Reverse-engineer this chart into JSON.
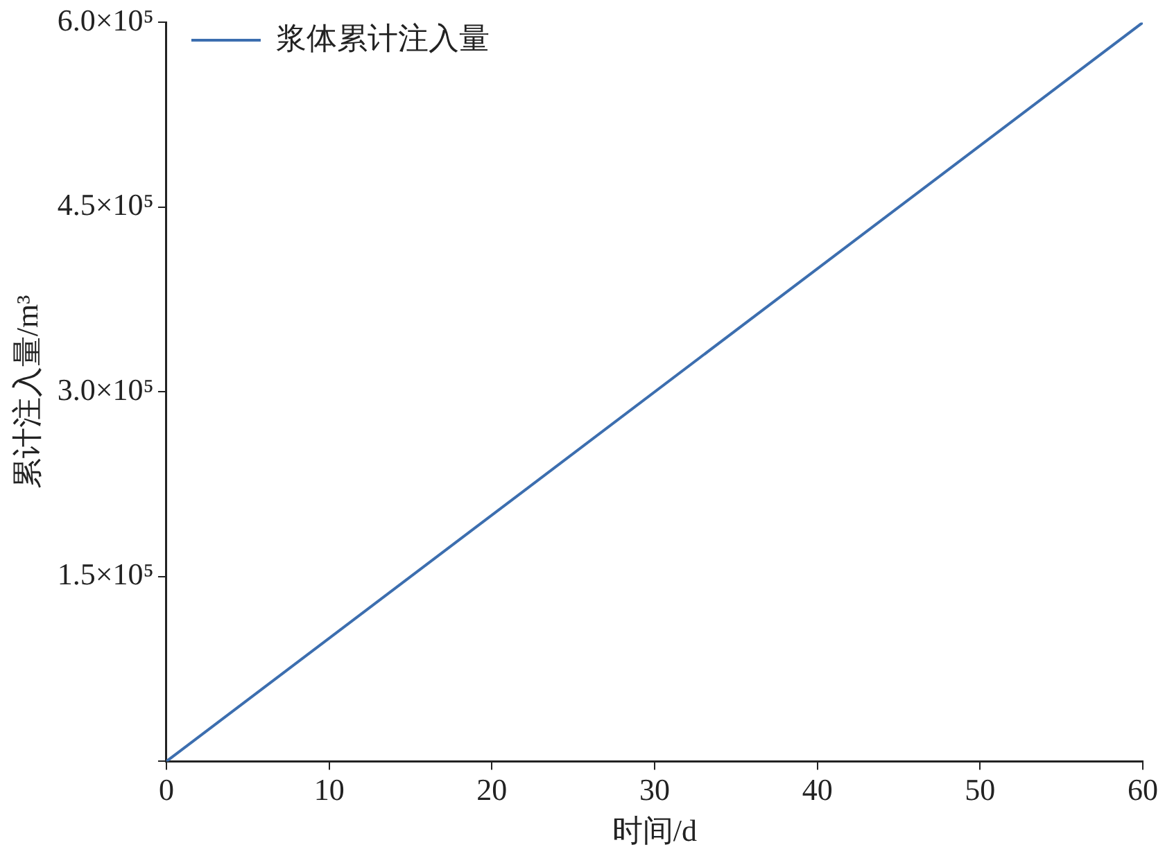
{
  "chart_data": {
    "type": "line",
    "xlabel": "时间/d",
    "ylabel": "累计注入量/m³",
    "x": [
      0,
      60
    ],
    "series": [
      {
        "name": "浆体累计注入量",
        "color": "#3c6eaf",
        "values": [
          0,
          600000
        ]
      }
    ],
    "xlim": [
      0,
      60
    ],
    "xticks": [
      0,
      10,
      20,
      30,
      40,
      50,
      60
    ],
    "ylim": [
      0,
      600000
    ],
    "yticks": [
      {
        "value": 0,
        "label": null
      },
      {
        "value": 150000,
        "label": "1.5×10⁵"
      },
      {
        "value": 300000,
        "label": "3.0×10⁵"
      },
      {
        "value": 450000,
        "label": "4.5×10⁵"
      },
      {
        "value": 600000,
        "label": "6.0×10⁵"
      }
    ],
    "grid": false,
    "legend": "top left",
    "marker": "none",
    "line_style": "solid"
  }
}
